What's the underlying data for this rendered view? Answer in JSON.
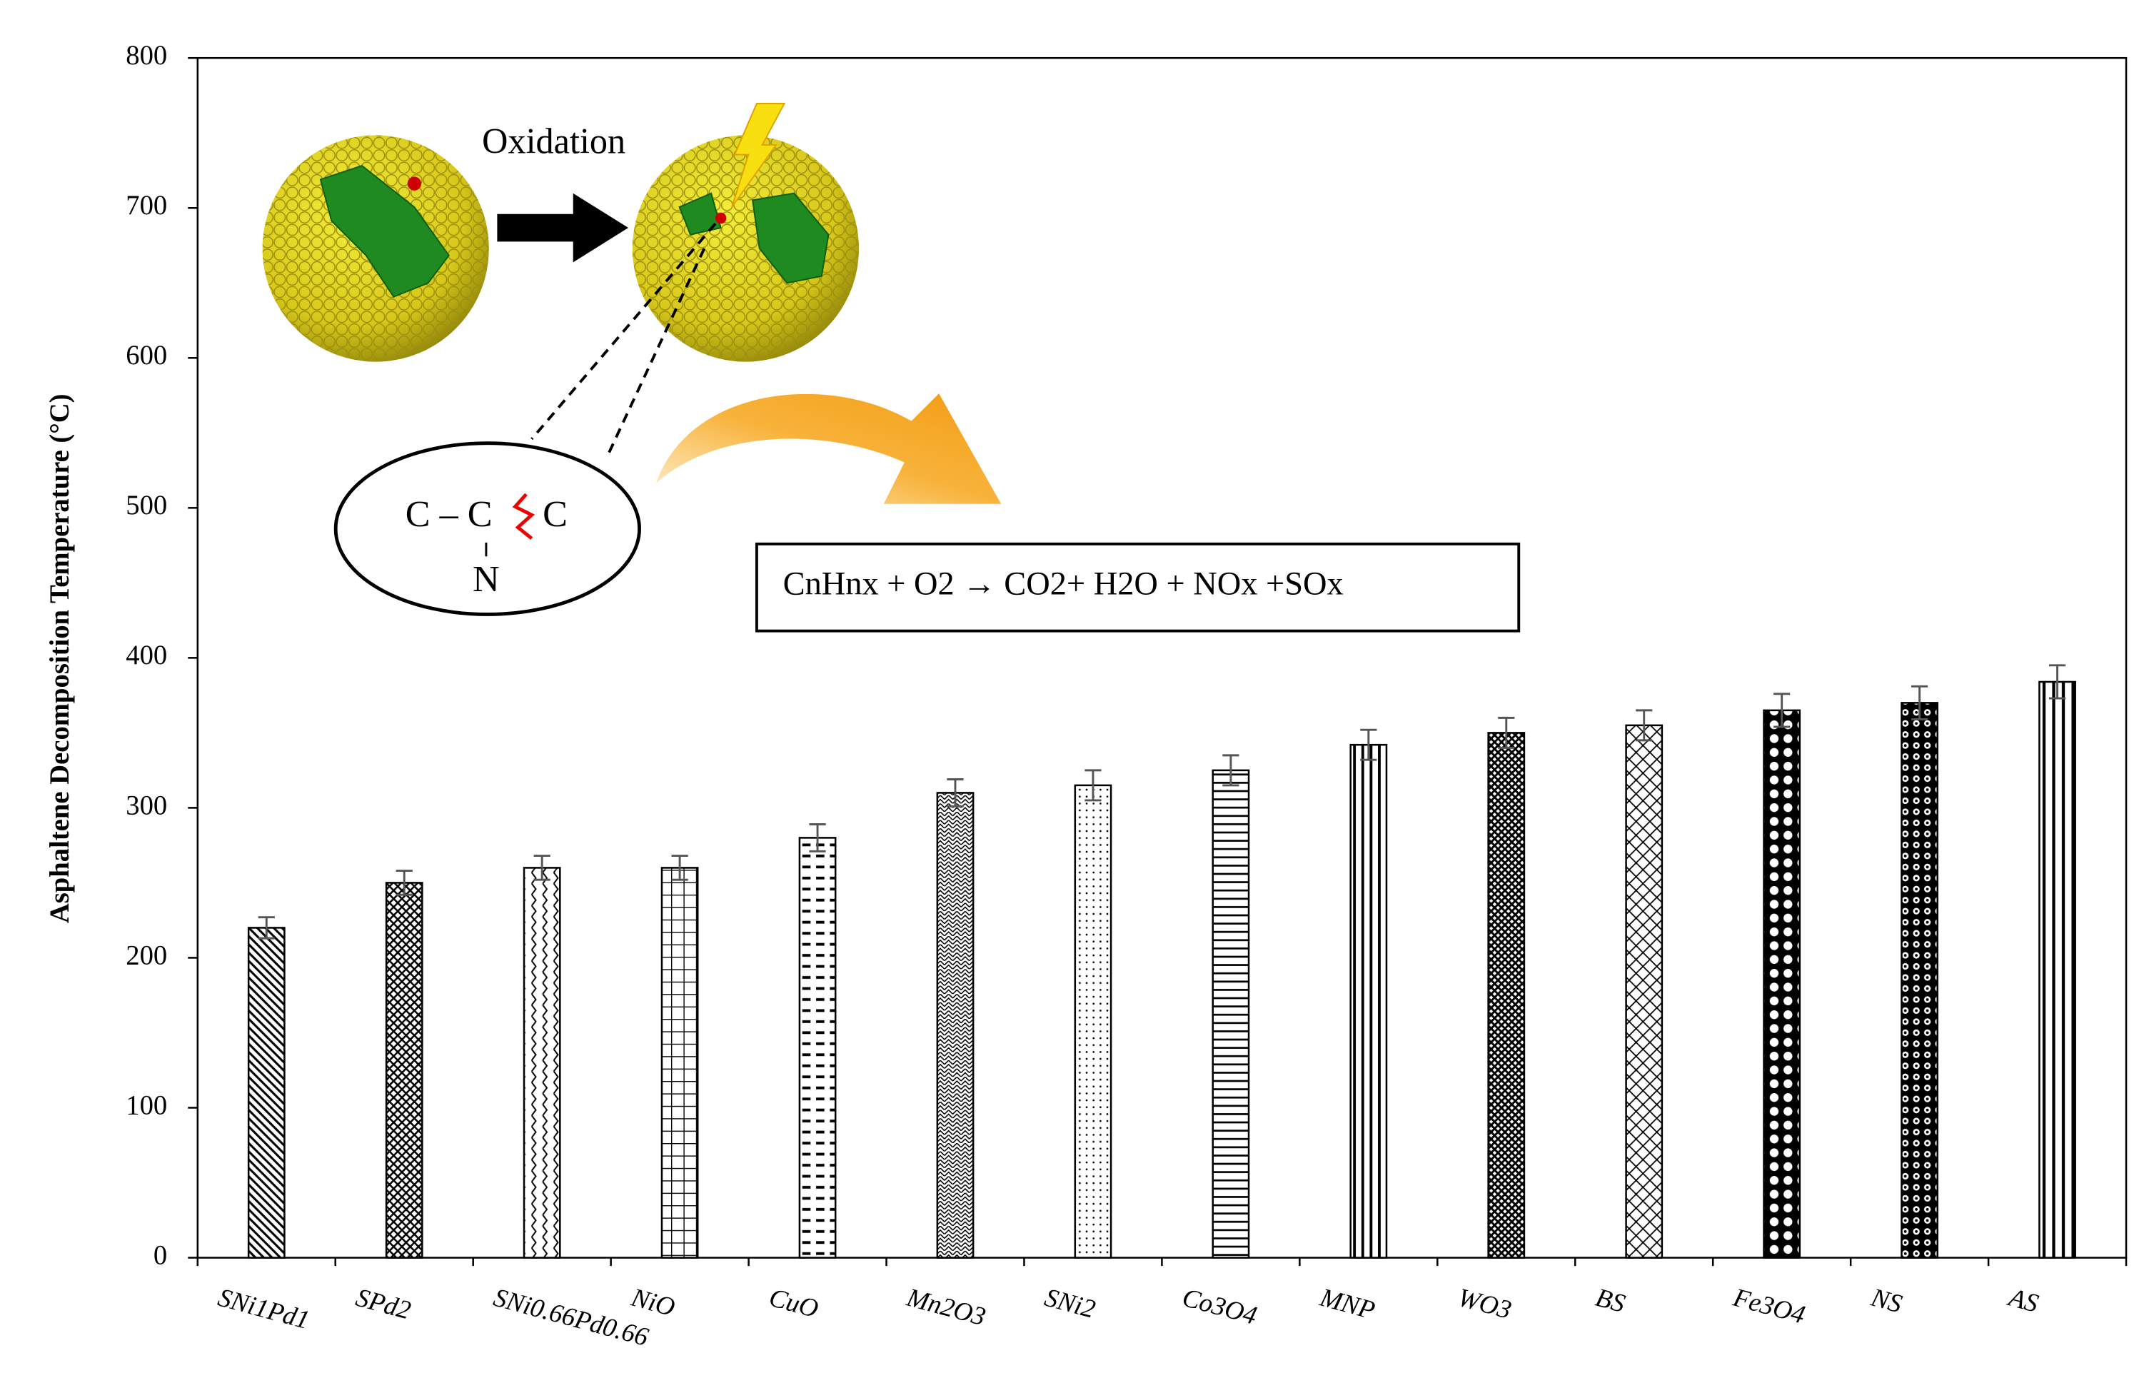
{
  "chart_data": {
    "type": "bar",
    "ylabel": "Asphaltene Decomposition Temperature (°C)",
    "categories": [
      "SNi1Pd1",
      "SPd2",
      "SNi0.66Pd0.66",
      "NiO",
      "CuO",
      "Mn2O3",
      "SNi2",
      "Co3O4",
      "MNP",
      "WO3",
      "BS",
      "Fe3O4",
      "NS",
      "AS"
    ],
    "values": [
      220,
      250,
      260,
      260,
      280,
      310,
      315,
      325,
      342,
      350,
      355,
      365,
      370,
      384
    ],
    "errors": [
      7,
      8,
      8,
      8,
      9,
      9,
      10,
      10,
      10,
      10,
      10,
      11,
      11,
      11
    ],
    "color": "#000000",
    "ylim": [
      0,
      800
    ],
    "yticks": [
      0,
      100,
      200,
      300,
      400,
      500,
      600,
      700,
      800
    ],
    "grid": false,
    "annotations": [
      "Oxidation",
      "C – C",
      "C",
      "N",
      "CnHnx + O2 → CO2+ H2O + NOx +SOx"
    ]
  }
}
